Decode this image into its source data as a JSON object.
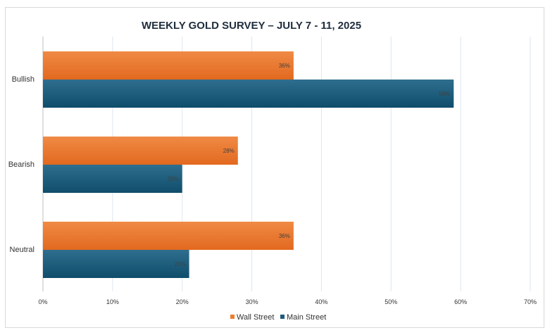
{
  "chart_data": {
    "type": "bar",
    "orientation": "horizontal",
    "title": "WEEKLY GOLD SURVEY – JULY 7 - 11, 2025",
    "categories": [
      "Bullish",
      "Bearish",
      "Neutral"
    ],
    "series": [
      {
        "name": "Wall Street",
        "values": [
          36,
          28,
          36
        ],
        "labels": [
          "36%",
          "28%",
          "36%"
        ],
        "color": "#ed7d31"
      },
      {
        "name": "Main Street",
        "values": [
          59,
          20,
          21
        ],
        "labels": [
          "59%",
          "20%",
          "21%"
        ],
        "color": "#1f5a7a"
      }
    ],
    "xlim": [
      0,
      70
    ],
    "x_ticks": [
      "0%",
      "10%",
      "20%",
      "30%",
      "40%",
      "50%",
      "60%",
      "70%"
    ],
    "grid": true,
    "legend": "bottom"
  }
}
